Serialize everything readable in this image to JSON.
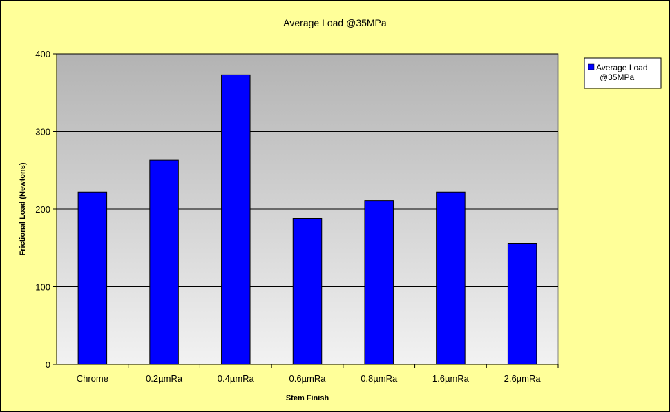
{
  "chart_data": {
    "type": "bar",
    "title": "Average Load @35MPa",
    "xlabel": "Stem Finish",
    "ylabel": "Frictional Load (Newtons)",
    "categories": [
      "Chrome",
      "0.2µmRa",
      "0.4µmRa",
      "0.6µmRa",
      "0.8µmRa",
      "1.6µmRa",
      "2.6µmRa"
    ],
    "series": [
      {
        "name": "Average Load @35MPa",
        "legend_lines": [
          "Average Load",
          "@35MPa"
        ],
        "values": [
          222,
          263,
          373,
          188,
          211,
          222,
          156
        ],
        "color": "#0000ff"
      }
    ],
    "ylim": [
      0,
      400
    ],
    "yticks": [
      0,
      100,
      200,
      300,
      400
    ],
    "grid": true,
    "legend_position": "top-right",
    "colors": {
      "chart_background": "#ffff99",
      "plot_gradient_top": "#b3b3b3",
      "plot_gradient_bottom": "#f2f2f2",
      "bar_fill": "#0000ff"
    }
  }
}
